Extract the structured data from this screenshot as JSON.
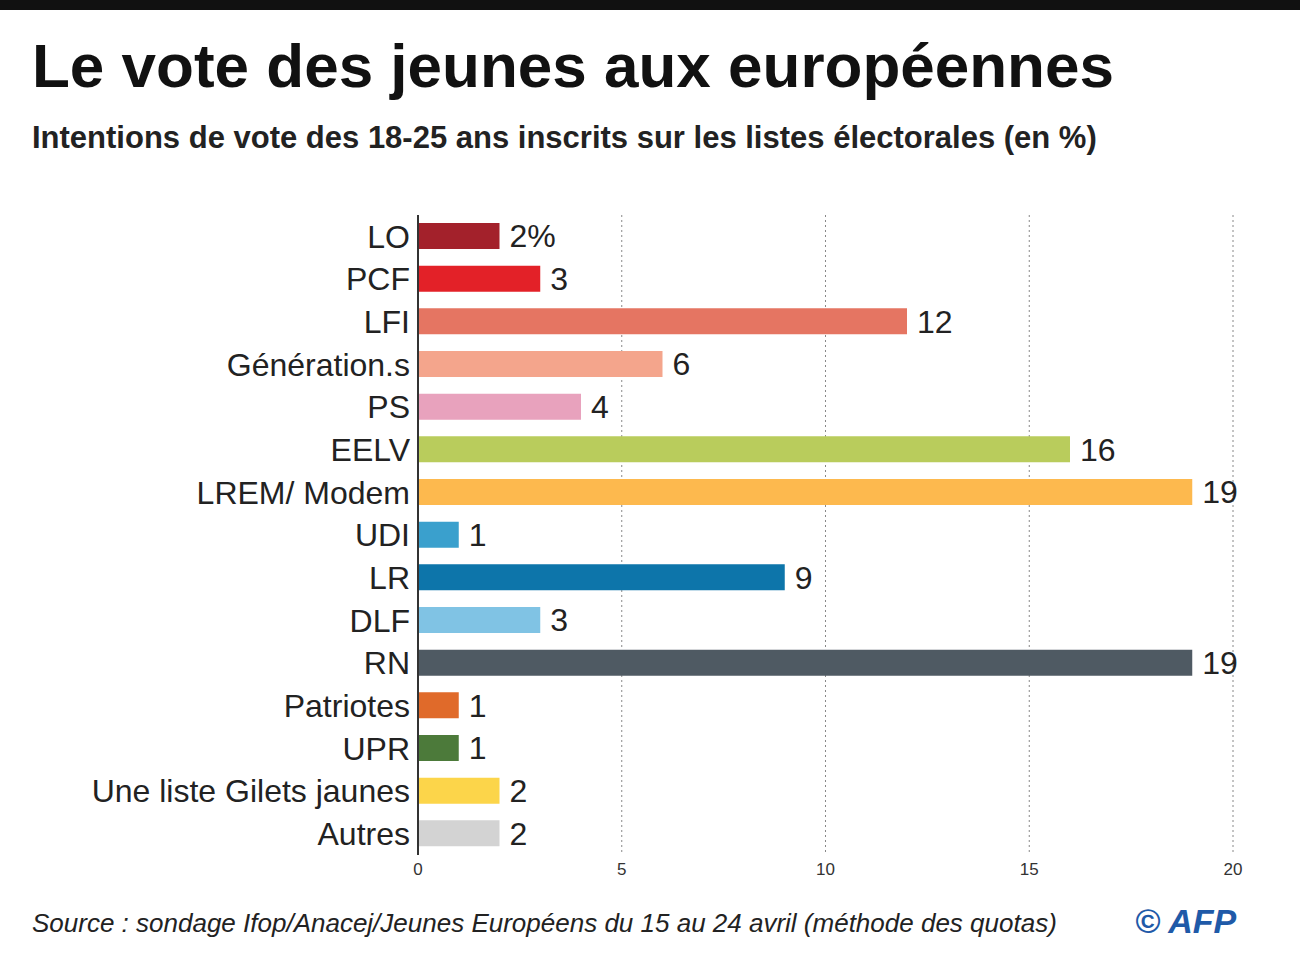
{
  "chart_data": {
    "type": "bar",
    "orientation": "horizontal",
    "title": "Le vote des jeunes aux européennes",
    "subtitle": "Intentions de vote des 18-25 ans inscrits sur les listes électorales (en %)",
    "source": "Source : sondage Ifop/Anacej/Jeunes Européens du 15 au 24 avril (méthode des quotas)",
    "credit": "© AFP",
    "categories": [
      "LO",
      "PCF",
      "LFI",
      "Génération.s",
      "PS",
      "EELV",
      "LREM/ Modem",
      "UDI",
      "LR",
      "DLF",
      "RN",
      "Patriotes",
      "UPR",
      "Une liste Gilets jaunes",
      "Autres"
    ],
    "values": [
      2,
      3,
      12,
      6,
      4,
      16,
      19,
      1,
      9,
      3,
      19,
      1,
      1,
      2,
      2
    ],
    "value_labels": [
      "2%",
      "3",
      "12",
      "6",
      "4",
      "16",
      "19",
      "1",
      "9",
      "3",
      "19",
      "1",
      "1",
      "2",
      "2"
    ],
    "colors": [
      "#a3212b",
      "#e32128",
      "#e57562",
      "#f4a58c",
      "#e8a2bd",
      "#b9cc5c",
      "#fdb94e",
      "#3aa0cd",
      "#0d75aa",
      "#80c3e4",
      "#4f5a63",
      "#e06a2a",
      "#4c7a3a",
      "#fcd54a",
      "#d3d3d3"
    ],
    "xlim": [
      0,
      20
    ],
    "xticks": [
      0,
      5,
      10,
      15,
      20
    ],
    "grid": true,
    "data_labels": true
  }
}
